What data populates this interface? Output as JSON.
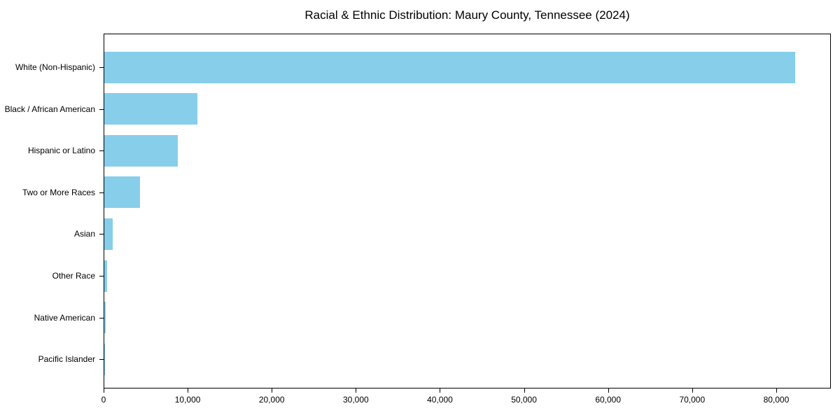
{
  "figure": {
    "title": "Racial & Ethnic Distribution: Maury County, Tennessee (2024)"
  },
  "chart_data": {
    "type": "bar",
    "orientation": "horizontal",
    "title": "Racial & Ethnic Distribution: Maury County, Tennessee (2024)",
    "categories": [
      "White (Non-Hispanic)",
      "Black / African American",
      "Hispanic or Latino",
      "Two or More Races",
      "Asian",
      "Other Race",
      "Native American",
      "Pacific Islander"
    ],
    "values": [
      82200,
      11050,
      8720,
      4280,
      1030,
      330,
      170,
      40
    ],
    "xlabel": "",
    "ylabel": "",
    "xlim": [
      0,
      86500
    ],
    "x_ticks": [
      0,
      10000,
      20000,
      30000,
      40000,
      50000,
      60000,
      70000,
      80000
    ],
    "x_tick_labels": [
      "0",
      "10,000",
      "20,000",
      "30,000",
      "40,000",
      "50,000",
      "60,000",
      "70,000",
      "80,000"
    ],
    "bar_color": "#87CEEB",
    "axis_color": "#000000",
    "text_color": "#000000",
    "background_color": "#ffffff",
    "grid": false,
    "legend_position": "none"
  }
}
